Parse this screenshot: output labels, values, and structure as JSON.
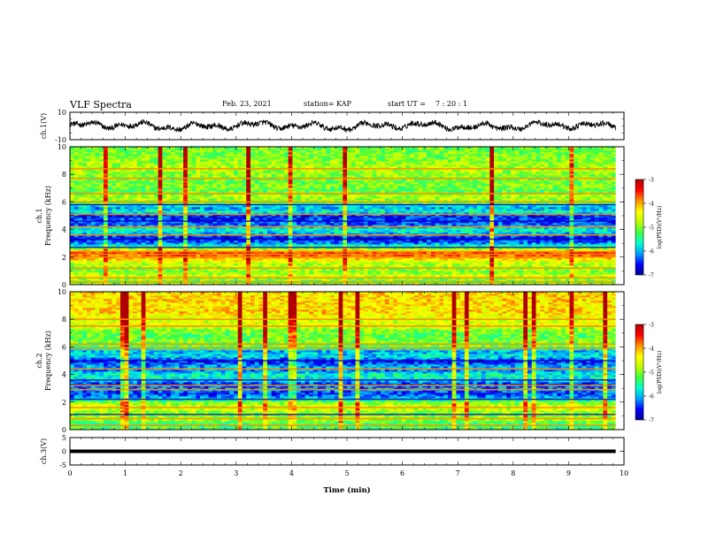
{
  "header": {
    "title": "VLF Spectra",
    "date": "Feb. 23, 2021",
    "station": "station= KAP",
    "start_label": "start  UT =",
    "start_time": "7 : 20 : 1"
  },
  "colors": {
    "trace": "#000000",
    "axis": "#000000",
    "colormap": [
      "#000090",
      "#0000ff",
      "#00a0ff",
      "#00ffd0",
      "#40ff40",
      "#c0ff00",
      "#ffff00",
      "#ff9000",
      "#ff0000",
      "#b00000"
    ]
  },
  "chart_data": [
    {
      "type": "line",
      "name": "ch1-waveform",
      "ylabel": "ch.1(V)",
      "ylim": [
        -10,
        10
      ],
      "y_ticks": [
        "10",
        "-10"
      ],
      "xlim": [
        0,
        10
      ],
      "grid": false,
      "noise_amplitude": 2.5
    },
    {
      "type": "heatmap",
      "name": "ch1-spectrogram",
      "ylabel_line1": "ch.1",
      "ylabel_line2": "Frequency (kHz)",
      "ylim": [
        0,
        10
      ],
      "y_ticks": [
        "0",
        "2",
        "4",
        "6",
        "8",
        "10"
      ],
      "xlim": [
        0,
        10
      ],
      "data_end": 9.85,
      "colorbar": {
        "range": [
          -7,
          -3
        ],
        "ticks": [
          "-3",
          "-4",
          "-5",
          "-6",
          "-7"
        ],
        "label": "log(PSD)(V²/Hz)"
      },
      "level_profile": [
        [
          0.0,
          0.55
        ],
        [
          0.3,
          0.45
        ],
        [
          0.6,
          0.6
        ],
        [
          1.0,
          0.5
        ],
        [
          1.6,
          0.58
        ],
        [
          2.0,
          0.75
        ],
        [
          2.3,
          0.9
        ],
        [
          2.6,
          0.55
        ],
        [
          3.0,
          0.22
        ],
        [
          3.4,
          0.08
        ],
        [
          3.7,
          0.25
        ],
        [
          4.0,
          0.35
        ],
        [
          4.3,
          0.2
        ],
        [
          4.6,
          0.15
        ],
        [
          5.0,
          0.12
        ],
        [
          5.3,
          0.35
        ],
        [
          5.6,
          0.22
        ],
        [
          6.0,
          0.5
        ],
        [
          6.4,
          0.55
        ],
        [
          6.8,
          0.45
        ],
        [
          7.2,
          0.5
        ],
        [
          7.6,
          0.48
        ],
        [
          8.0,
          0.52
        ],
        [
          8.6,
          0.55
        ],
        [
          9.2,
          0.5
        ],
        [
          10.0,
          0.48
        ]
      ],
      "bright_lines_khz": [
        0.2,
        0.5,
        1.2,
        2.0,
        2.2,
        2.4,
        3.6,
        4.2,
        5.1,
        6.0,
        6.6,
        7.7,
        8.4
      ],
      "dark_lines_khz": [
        2.7,
        3.3,
        4.6,
        5.8
      ]
    },
    {
      "type": "heatmap",
      "name": "ch2-spectrogram",
      "ylabel_line1": "ch.2",
      "ylabel_line2": "Frequency (kHz)",
      "ylim": [
        0,
        10
      ],
      "y_ticks": [
        "0",
        "2",
        "4",
        "6",
        "8",
        "10"
      ],
      "xlim": [
        0,
        10
      ],
      "data_end": 9.85,
      "colorbar": {
        "range": [
          -7,
          -3
        ],
        "ticks": [
          "-3",
          "-4",
          "-5",
          "-6",
          "-7"
        ],
        "label": "log(PSD)(V²/Hz)"
      },
      "level_profile": [
        [
          0.0,
          0.45
        ],
        [
          0.4,
          0.4
        ],
        [
          0.8,
          0.55
        ],
        [
          1.2,
          0.5
        ],
        [
          1.6,
          0.6
        ],
        [
          2.0,
          0.5
        ],
        [
          2.3,
          0.25
        ],
        [
          2.6,
          0.15
        ],
        [
          3.0,
          0.22
        ],
        [
          3.3,
          0.12
        ],
        [
          3.6,
          0.3
        ],
        [
          4.0,
          0.35
        ],
        [
          4.3,
          0.2
        ],
        [
          4.6,
          0.25
        ],
        [
          5.0,
          0.1
        ],
        [
          5.3,
          0.3
        ],
        [
          5.7,
          0.25
        ],
        [
          6.0,
          0.45
        ],
        [
          6.5,
          0.5
        ],
        [
          6.8,
          0.45
        ],
        [
          7.2,
          0.5
        ],
        [
          7.6,
          0.62
        ],
        [
          8.0,
          0.58
        ],
        [
          8.5,
          0.7
        ],
        [
          9.0,
          0.68
        ],
        [
          9.4,
          0.7
        ],
        [
          10.0,
          0.68
        ]
      ],
      "bright_lines_khz": [
        0.3,
        0.8,
        1.6,
        2.9,
        3.2,
        4.4,
        5.9,
        6.2,
        7.5,
        8.0
      ],
      "dark_lines_khz": [
        1.1,
        2.2,
        3.6,
        5.0
      ]
    },
    {
      "type": "line",
      "name": "ch3-waveform",
      "ylabel": "ch.3(V)",
      "ylim": [
        -5,
        5
      ],
      "y_ticks": [
        "5",
        "0",
        "-5"
      ],
      "xlim": [
        0,
        10
      ],
      "level": 0,
      "grid": false
    }
  ],
  "xaxis": {
    "label": "Time (min)",
    "range": [
      0,
      10
    ],
    "ticks": [
      "0",
      "1",
      "2",
      "3",
      "4",
      "5",
      "6",
      "7",
      "8",
      "9",
      "10"
    ]
  }
}
